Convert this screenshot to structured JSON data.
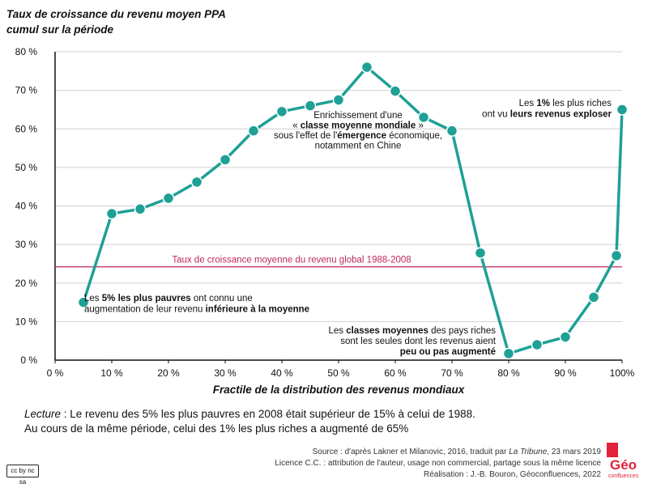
{
  "chart_data": {
    "type": "line",
    "title": "Taux de croissance du revenu moyen PPA",
    "subtitle": "cumul sur la période",
    "xlabel": "Fractile de la distribution des revenus mondiaux",
    "ylabel": "",
    "x_ticks": [
      "0 %",
      "10 %",
      "20 %",
      "30 %",
      "40 %",
      "50 %",
      "60 %",
      "70 %",
      "80 %",
      "90 %",
      "100%"
    ],
    "y_ticks": [
      "0 %",
      "10 %",
      "20 %",
      "30 %",
      "40 %",
      "50 %",
      "60 %",
      "70 %",
      "80 %"
    ],
    "xlim": [
      0,
      100
    ],
    "ylim": [
      0,
      80
    ],
    "grid": "horizontal",
    "series": [
      {
        "x": [
          5,
          10,
          15,
          20,
          25,
          30,
          35,
          40,
          45,
          50,
          55,
          60,
          65,
          70,
          75,
          80,
          85,
          90,
          95,
          99,
          100
        ],
        "values": [
          15,
          38,
          39.2,
          42,
          46.2,
          52,
          59.5,
          64.5,
          66,
          67.5,
          76,
          69.8,
          63,
          59.5,
          27.8,
          1.7,
          4,
          6,
          16.3,
          27.1,
          65
        ],
        "color": "#1fa096"
      }
    ],
    "reference_line": {
      "value": 24.2,
      "label": "Taux de croissance moyenne du revenu global 1988-2008",
      "color": "#c0275b"
    },
    "annotations": [
      {
        "lines": [
          [
            "Les ",
            "5% les plus pauvres",
            " ont connu une"
          ],
          [
            "augmentation de leur revenu ",
            "inférieure à la moyenne",
            ""
          ]
        ]
      },
      {
        "lines": [
          [
            "Enrichissement d'une",
            "",
            ""
          ],
          [
            "« ",
            "classe moyenne mondiale",
            " »"
          ],
          [
            "sous l'effet de l'",
            "émergence",
            " économique,"
          ],
          [
            "notamment en Chine",
            "",
            ""
          ]
        ]
      },
      {
        "lines": [
          [
            "Les ",
            "1%",
            " les plus riches"
          ],
          [
            "ont vu ",
            "leurs revenus exploser",
            ""
          ]
        ]
      },
      {
        "lines": [
          [
            "Les ",
            "classes moyennes",
            " des pays riches"
          ],
          [
            "sont les seules dont les revenus aient",
            "",
            ""
          ],
          [
            "",
            "peu ou pas augmenté",
            ""
          ]
        ]
      }
    ]
  },
  "reading": {
    "label": "Lecture",
    "line1": " : Le revenu des 5% les plus pauvres en 2008 était supérieur de 15% à celui de 1988.",
    "line2": "Au cours de la même période, celui des 1% les plus riches a augmenté de 65%"
  },
  "credits": {
    "source_prefix": "Source : d'après Lakner et Milanovic, 2016, traduit par ",
    "source_journal": "La Tribune",
    "source_suffix": ", 23 mars 2019",
    "licence": "Licence C.C. : attribution de l'auteur, usage non commercial, partage sous la même licence",
    "realisation": "Réalisation : J.-B. Bouron, Géoconfluences, 2022"
  },
  "badge": {
    "text": "cc by nc sa"
  },
  "logo": {
    "text": "Géo",
    "subtext": "confluences",
    "color": "#e2213a"
  },
  "colors": {
    "line": "#1fa096",
    "reference": "#c0275b",
    "grid": "#cfcfcf"
  }
}
